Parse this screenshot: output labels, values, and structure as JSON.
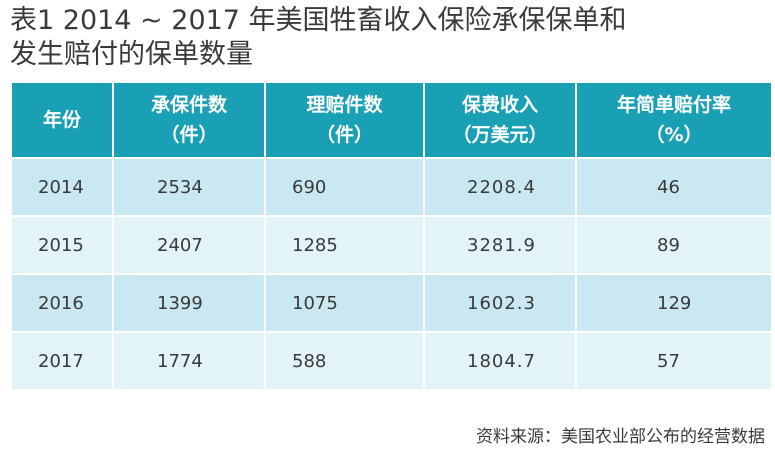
{
  "title": {
    "line1": "表1  2014 ~ 2017 年美国牲畜收入保险承保保单和",
    "line2": "发生赔付的保单数量"
  },
  "table": {
    "headers": [
      {
        "line1": "年份",
        "line2": ""
      },
      {
        "line1": "承保件数",
        "line2": "（件）"
      },
      {
        "line1": "理赔件数",
        "line2": "（件）"
      },
      {
        "line1": "保费收入",
        "line2": "（万美元）"
      },
      {
        "line1": "年简单赔付率",
        "line2": "（%）"
      }
    ],
    "rows": [
      [
        "2014",
        "2534",
        "690",
        "2208.4",
        "46"
      ],
      [
        "2015",
        "2407",
        "1285",
        "3281.9",
        "89"
      ],
      [
        "2016",
        "1399",
        "1075",
        "1602.3",
        "129"
      ],
      [
        "2017",
        "1774",
        "588",
        "1804.7",
        "57"
      ]
    ]
  },
  "source": "资料来源：美国农业部公布的经营数据",
  "colors": {
    "header_bg": "#1aa0b4",
    "row_odd_bg": "#c9e8f2",
    "row_even_bg": "#e3f4f9"
  }
}
